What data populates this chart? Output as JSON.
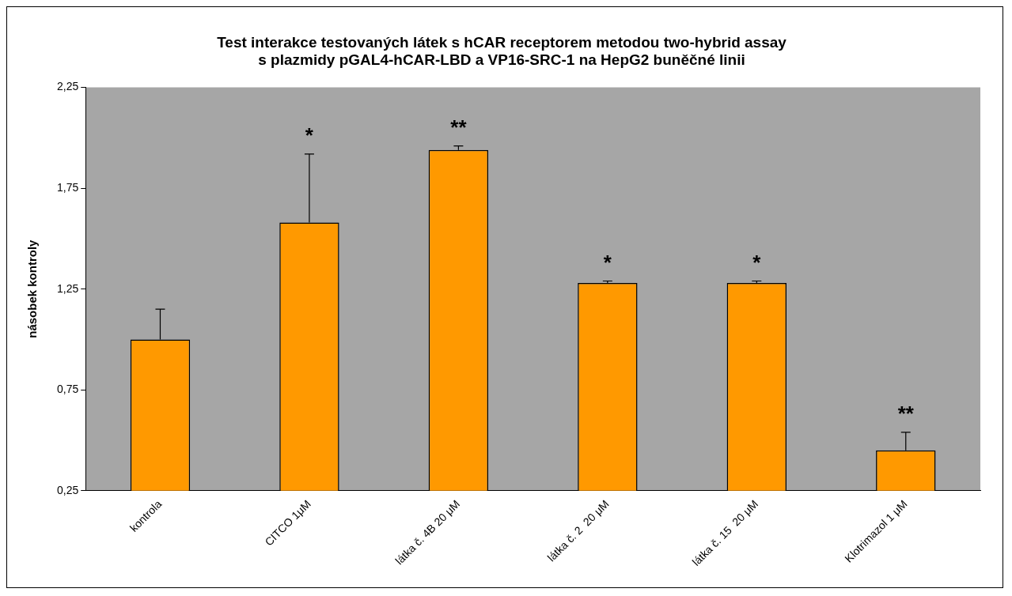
{
  "chart_data": {
    "type": "bar",
    "title": [
      "Test interakce testovaných látek s hCAR receptorem metodou two-hybrid assay",
      "s plazmidy pGAL4-hCAR-LBD a VP16-SRC-1 na HepG2 buněčné linii"
    ],
    "ylabel": "násobek kontroly",
    "categories": [
      "kontrola",
      "CITCO 1μM",
      "látka č. 4B 20 μM",
      "látka č. 2  20 μM",
      "látka č. 15  20 μM",
      "Klotrimazol 1 μM"
    ],
    "values": [
      1.0,
      1.58,
      1.94,
      1.28,
      1.28,
      0.45
    ],
    "errors": [
      [
        1.0,
        1.15
      ],
      [
        1.58,
        1.92
      ],
      [
        1.94,
        1.96
      ],
      [
        1.28,
        1.29
      ],
      [
        1.28,
        1.29
      ],
      [
        0.45,
        0.54
      ]
    ],
    "color": "#ff9900",
    "ylim": [
      0.25,
      2.25
    ],
    "yticks": [
      {
        "value": 0.25,
        "label": "0,25"
      },
      {
        "value": 0.75,
        "label": "0,75"
      },
      {
        "value": 1.25,
        "label": "1,25"
      },
      {
        "value": 1.75,
        "label": "1,75"
      },
      {
        "value": 2.25,
        "label": "2,25"
      }
    ],
    "grid": false,
    "legend": false,
    "annotations": [
      {
        "text": "*",
        "x": "CITCO 1μM",
        "y": 1.92
      },
      {
        "text": "**",
        "x": "látka č. 4B 20 μM",
        "y": 1.96
      },
      {
        "text": "*",
        "x": "látka č. 2  20 μM",
        "y": 1.29
      },
      {
        "text": "*",
        "x": "látka č. 15  20 μM",
        "y": 1.29
      },
      {
        "text": "**",
        "x": "Klotrimazol 1 μM",
        "y": 0.54
      }
    ]
  }
}
